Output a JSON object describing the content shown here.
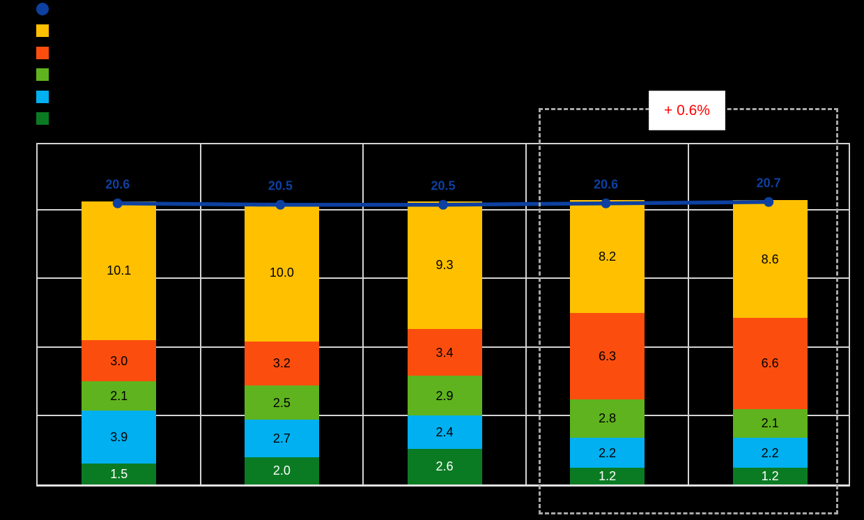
{
  "chart_data": {
    "type": "bar",
    "subtype": "stacked-bar-with-line",
    "categories": [
      "",
      "",
      "",
      "",
      ""
    ],
    "series": [
      {
        "name": "segment-dark-green",
        "color": "#0B7B23",
        "label_color": "#FFFFFF",
        "values": [
          1.5,
          2.0,
          2.6,
          1.2,
          1.2
        ]
      },
      {
        "name": "segment-light-blue",
        "color": "#00B0F0",
        "label_color": "#000000",
        "values": [
          3.9,
          2.7,
          2.4,
          2.2,
          2.2
        ]
      },
      {
        "name": "segment-green",
        "color": "#5FB31E",
        "label_color": "#000000",
        "values": [
          2.1,
          2.5,
          2.9,
          2.8,
          2.1
        ]
      },
      {
        "name": "segment-orange",
        "color": "#FB4E0E",
        "label_color": "#000000",
        "values": [
          3.0,
          3.2,
          3.4,
          6.3,
          6.6
        ]
      },
      {
        "name": "segment-yellow",
        "color": "#FFC000",
        "label_color": "#000000",
        "values": [
          10.1,
          10.0,
          9.3,
          8.2,
          8.6
        ]
      }
    ],
    "line_series": {
      "name": "total-line",
      "color": "#0D40A0",
      "label_color": "#0D40A0",
      "values": [
        20.6,
        20.5,
        20.5,
        20.6,
        20.7
      ]
    },
    "title": "",
    "xlabel": "",
    "ylabel": "",
    "ylim": [
      0,
      25
    ],
    "grid_step": 5,
    "grid_on": true,
    "grid_color": "#D4D4D4",
    "background_color": "#000000",
    "legend": {
      "position": "top-left",
      "items": [
        {
          "shape": "circle",
          "color": "#0D40A0"
        },
        {
          "shape": "square",
          "color": "#FFC000"
        },
        {
          "shape": "square",
          "color": "#FB4E0E"
        },
        {
          "shape": "square",
          "color": "#5FB31E"
        },
        {
          "shape": "square",
          "color": "#00B0F0"
        },
        {
          "shape": "square",
          "color": "#0B7B23"
        }
      ]
    },
    "annotation": {
      "label": "+ 0.6%",
      "text_color": "#FF0000",
      "box_fill": "#FFFFFF",
      "dashed_border_color": "#A9A9A9",
      "covers_categories": [
        3,
        4
      ]
    }
  }
}
